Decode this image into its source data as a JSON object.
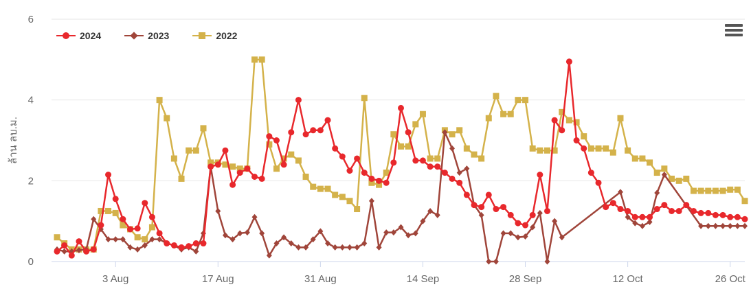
{
  "chart_data": {
    "type": "line",
    "ylabel": "ล้าน ลบ.ม.",
    "ylim": [
      0,
      6
    ],
    "yticks": [
      "0",
      "2",
      "4",
      "6"
    ],
    "x_tick_labels": [
      "3 Aug",
      "17 Aug",
      "31 Aug",
      "14 Sep",
      "28 Sep",
      "12 Oct",
      "26 Oct"
    ],
    "x_tick_index": [
      8,
      22,
      36,
      50,
      64,
      78,
      92
    ],
    "x_count": 95,
    "legend_position": "top-left",
    "grid": true,
    "series": [
      {
        "name": "2024",
        "color": "#e8282c",
        "marker": "circle",
        "values": [
          0.25,
          0.4,
          0.15,
          0.5,
          0.25,
          0.3,
          0.9,
          2.15,
          1.55,
          1.05,
          0.8,
          0.82,
          1.45,
          1.1,
          0.7,
          0.45,
          0.4,
          0.35,
          0.38,
          0.45,
          0.45,
          2.35,
          2.4,
          2.75,
          1.9,
          2.2,
          2.3,
          2.1,
          2.05,
          3.1,
          3.0,
          2.4,
          3.2,
          4.0,
          3.15,
          3.25,
          3.25,
          3.5,
          2.8,
          2.6,
          2.25,
          2.55,
          2.2,
          2.05,
          2.0,
          1.95,
          2.45,
          3.8,
          3.2,
          2.5,
          2.5,
          2.35,
          2.35,
          2.2,
          2.05,
          1.95,
          1.65,
          1.4,
          1.35,
          1.65,
          1.3,
          1.35,
          1.15,
          0.95,
          0.9,
          1.15,
          2.15,
          1.25,
          3.5,
          3.25,
          4.95,
          3.0,
          2.8,
          2.2,
          1.95,
          1.35,
          1.45,
          1.3,
          1.25,
          1.1,
          1.1,
          1.1,
          1.3,
          1.4,
          1.25,
          1.25,
          1.4,
          1.25,
          1.2,
          1.2,
          1.15,
          1.15,
          1.1,
          1.1,
          1.05
        ]
      },
      {
        "name": "2023",
        "color": "#a0453a",
        "marker": "diamond",
        "values": [
          0.3,
          0.25,
          0.25,
          0.28,
          0.3,
          1.05,
          0.8,
          0.55,
          0.55,
          0.55,
          0.35,
          0.3,
          0.4,
          0.55,
          0.55,
          0.45,
          0.4,
          0.3,
          0.35,
          0.25,
          0.7,
          2.35,
          1.25,
          0.65,
          0.55,
          0.7,
          0.72,
          1.1,
          0.7,
          0.15,
          0.45,
          0.6,
          0.45,
          0.35,
          0.35,
          0.55,
          0.75,
          0.45,
          0.35,
          0.35,
          0.35,
          0.35,
          0.45,
          1.5,
          0.35,
          0.72,
          0.72,
          0.85,
          0.65,
          0.7,
          1.0,
          1.25,
          1.15,
          3.2,
          2.8,
          2.2,
          2.3,
          1.4,
          1.15,
          0.0,
          0.0,
          0.7,
          0.7,
          0.6,
          0.62,
          0.85,
          1.2,
          0.0,
          1.0,
          0.6,
          null,
          null,
          null,
          null,
          null,
          null,
          null,
          1.72,
          1.1,
          0.95,
          0.88,
          0.98,
          1.7,
          2.15,
          null,
          null,
          null,
          null,
          0.88,
          0.88,
          0.88,
          0.88,
          0.88,
          0.88,
          0.88
        ]
      },
      {
        "name": "2022",
        "color": "#d4b24a",
        "marker": "square",
        "values": [
          0.6,
          0.45,
          0.3,
          0.3,
          0.3,
          0.3,
          1.25,
          1.25,
          1.2,
          0.9,
          0.8,
          0.6,
          0.55,
          0.85,
          4.0,
          3.55,
          2.55,
          2.05,
          2.75,
          2.75,
          3.3,
          2.45,
          2.45,
          2.4,
          2.35,
          2.3,
          2.3,
          5.0,
          5.0,
          2.9,
          2.3,
          2.55,
          2.65,
          2.5,
          2.1,
          1.85,
          1.8,
          1.8,
          1.65,
          1.6,
          1.5,
          1.3,
          4.05,
          1.95,
          1.9,
          2.2,
          3.15,
          2.85,
          2.85,
          3.4,
          3.65,
          2.55,
          2.55,
          3.25,
          3.15,
          3.25,
          2.8,
          2.65,
          2.55,
          3.55,
          4.1,
          3.65,
          3.65,
          4.0,
          4.0,
          2.8,
          2.75,
          2.75,
          2.75,
          3.7,
          3.5,
          3.45,
          3.1,
          2.8,
          2.8,
          2.8,
          2.7,
          3.55,
          2.75,
          2.55,
          2.55,
          2.45,
          2.2,
          2.3,
          2.05,
          2.0,
          2.05,
          1.75,
          1.75,
          1.75,
          1.75,
          1.75,
          1.78,
          1.78,
          1.5
        ]
      }
    ]
  },
  "legend": {
    "items": [
      {
        "label": "2024"
      },
      {
        "label": "2023"
      },
      {
        "label": "2022"
      }
    ]
  },
  "menu": {
    "icon": "hamburger-menu-icon"
  }
}
